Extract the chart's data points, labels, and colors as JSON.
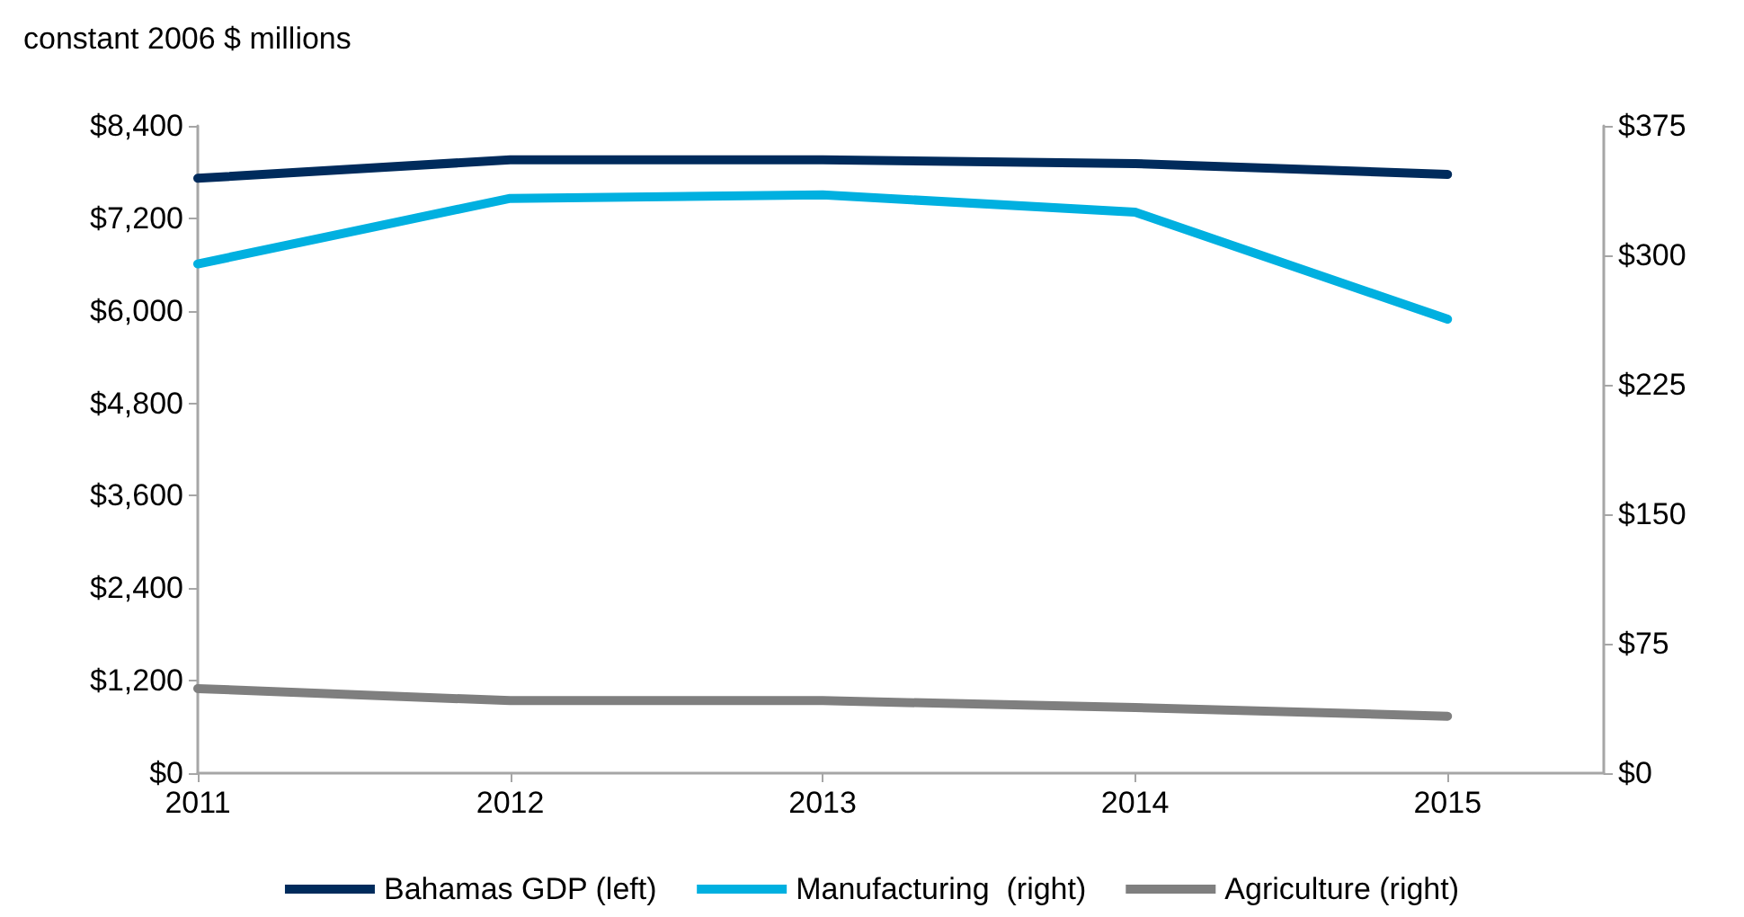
{
  "chart_data": {
    "type": "line",
    "ylabel": "constant 2006 $ millions",
    "x": [
      2011,
      2012,
      2013,
      2014,
      2015
    ],
    "xlim": [
      2011,
      2015.5
    ],
    "xticks": [
      2011,
      2012,
      2013,
      2014,
      2015
    ],
    "ylim": [
      0,
      8400
    ],
    "yticks": [
      {
        "value": 0,
        "label": "$0"
      },
      {
        "value": 1200,
        "label": "$1,200"
      },
      {
        "value": 2400,
        "label": "$2,400"
      },
      {
        "value": 3600,
        "label": "$3,600"
      },
      {
        "value": 4800,
        "label": "$4,800"
      },
      {
        "value": 6000,
        "label": "$6,000"
      },
      {
        "value": 7200,
        "label": "$7,200"
      },
      {
        "value": 8400,
        "label": "$8,400"
      }
    ],
    "y2lim": [
      0,
      375
    ],
    "y2ticks": [
      {
        "value": 0,
        "label": "$0"
      },
      {
        "value": 75,
        "label": "$75"
      },
      {
        "value": 150,
        "label": "$150"
      },
      {
        "value": 225,
        "label": "$225"
      },
      {
        "value": 300,
        "label": "$300"
      },
      {
        "value": 375,
        "label": "$375"
      }
    ],
    "series": [
      {
        "name": "Bahamas GDP (left)",
        "color": "#002b5c",
        "values": [
          7720,
          7960,
          7960,
          7910,
          7770
        ]
      },
      {
        "name": "Manufacturing  (right)",
        "color": "#00b0e0",
        "axis": "y2",
        "values": [
          295,
          333,
          335,
          325,
          263
        ]
      },
      {
        "name": "Agriculture (right)",
        "color": "#7f7f7f",
        "axis": "y2",
        "values": [
          49,
          42,
          42,
          38,
          33
        ]
      }
    ],
    "grid": false,
    "legend": "bottom",
    "marker": "none",
    "line_style": "solid"
  }
}
